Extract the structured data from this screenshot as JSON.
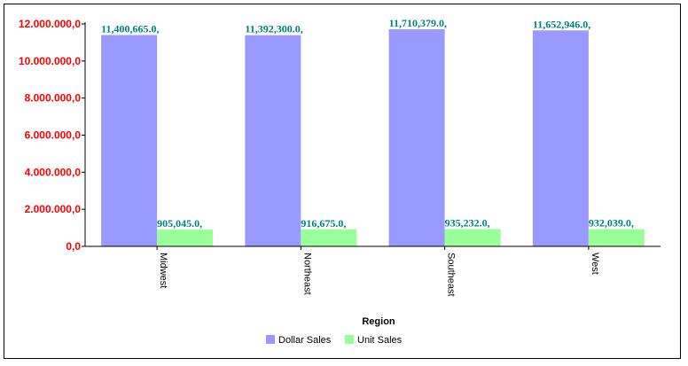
{
  "chart_data": {
    "type": "bar",
    "categories": [
      "Midwest",
      "Northeast",
      "Southeast",
      "West"
    ],
    "series": [
      {
        "name": "Dollar Sales",
        "values": [
          11400665,
          11392300,
          11710379,
          11652946
        ],
        "labels": [
          "11,400,665.0,",
          "11,392,300.0,",
          "11,710,379.0,",
          "11,652,946.0,"
        ]
      },
      {
        "name": "Unit Sales",
        "values": [
          905045,
          916675,
          935232,
          932039
        ],
        "labels": [
          "905,045.0,",
          "916,675.0,",
          "935,232.0,",
          "932,039.0,"
        ]
      }
    ],
    "yticks": [
      0,
      2000000,
      4000000,
      6000000,
      8000000,
      10000000,
      12000000
    ],
    "ytick_labels": [
      "0,0",
      "2.000.000,0",
      "4.000.000,0",
      "6.000.000,0",
      "8.000.000,0",
      "10.000.000,0",
      "12.000.000,0"
    ],
    "ylim": [
      0,
      12000000
    ],
    "xlabel": "Region",
    "ylabel": "",
    "legend_position": "bottom",
    "grid": false,
    "colors": {
      "series": [
        "#9999ff",
        "#99ff99"
      ],
      "ytick_text": "#ff0000",
      "data_label": "#008080",
      "axis": "#000000"
    }
  }
}
